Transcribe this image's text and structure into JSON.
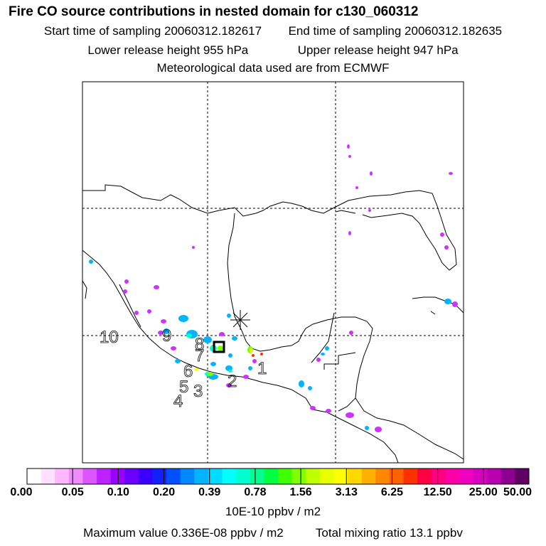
{
  "header": {
    "title": "Fire CO source contributions in nested domain for c130_060312",
    "start_label": "Start time of sampling 20060312.182617",
    "end_label": "End time of sampling 20060312.182635",
    "lower_label": "Lower release height  955 hPa",
    "upper_label": "Upper release height  947 hPa",
    "met_label": "Meteorological data used are from ECMWF"
  },
  "map": {
    "labels": [
      "10",
      "9",
      "8",
      "7",
      "6",
      "5",
      "4",
      "3",
      "2",
      "1"
    ]
  },
  "colorbar": {
    "tick_labels": [
      "0.00",
      "0.05",
      "0.10",
      "0.20",
      "0.39",
      "0.78",
      "1.56",
      "3.13",
      "6.25",
      "12.50",
      "25.00",
      "50.00"
    ],
    "colors": [
      "#ffffff",
      "#ffe0ff",
      "#ffb8ff",
      "#f08cff",
      "#dd55ff",
      "#bb22ff",
      "#9900ff",
      "#6a00ff",
      "#3a00ff",
      "#1020ff",
      "#0050ff",
      "#0088ff",
      "#00b4ff",
      "#00dcff",
      "#00ffff",
      "#00ffd0",
      "#00ff90",
      "#00ff40",
      "#40ff00",
      "#80ff00",
      "#c0ff00",
      "#e8ff00",
      "#ffff00",
      "#ffd800",
      "#ffb000",
      "#ff8800",
      "#ff6000",
      "#ff3000",
      "#ff0040",
      "#ff0080",
      "#ff00a8",
      "#f000c0",
      "#d800c0",
      "#b800b0",
      "#8c0090",
      "#600060"
    ],
    "units": "10E-10 ppbv / m2"
  },
  "footer": {
    "max_label": "Maximum value  0.336E-08 ppbv / m2",
    "total_label": "Total mixing ratio       13.1 ppbv"
  }
}
